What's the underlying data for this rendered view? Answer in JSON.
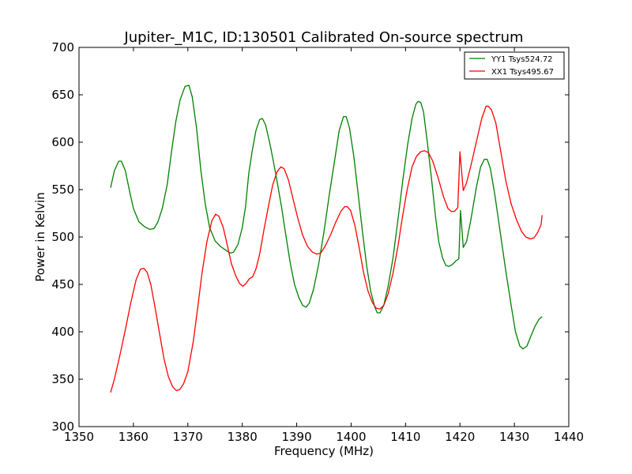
{
  "chart_data": {
    "type": "line",
    "title": "Jupiter-_M1C, ID:130501 Calibrated On-source spectrum",
    "xlabel": "Frequency (MHz)",
    "ylabel": "Power in Kelvin",
    "xlim": [
      1350,
      1440
    ],
    "ylim": [
      300,
      700
    ],
    "xticks": [
      1350,
      1360,
      1370,
      1380,
      1390,
      1400,
      1410,
      1420,
      1430,
      1440
    ],
    "yticks": [
      300,
      350,
      400,
      450,
      500,
      550,
      600,
      650,
      700
    ],
    "grid": false,
    "legend_position": "top-right",
    "series": [
      {
        "name": "YY1 Tsys524.72",
        "color": "#008000",
        "points": [
          [
            1355.8,
            552
          ],
          [
            1356.5,
            570
          ],
          [
            1357.3,
            580
          ],
          [
            1357.8,
            580
          ],
          [
            1358.5,
            570
          ],
          [
            1359.3,
            548
          ],
          [
            1360,
            530
          ],
          [
            1361,
            516
          ],
          [
            1362,
            511
          ],
          [
            1363,
            508
          ],
          [
            1363.8,
            509
          ],
          [
            1364.5,
            516
          ],
          [
            1365.3,
            530
          ],
          [
            1366.2,
            555
          ],
          [
            1367,
            590
          ],
          [
            1367.8,
            622
          ],
          [
            1368.6,
            645
          ],
          [
            1369.5,
            659
          ],
          [
            1370.2,
            660
          ],
          [
            1370.8,
            648
          ],
          [
            1371.6,
            615
          ],
          [
            1372.4,
            570
          ],
          [
            1373.2,
            535
          ],
          [
            1374,
            510
          ],
          [
            1375,
            496
          ],
          [
            1376,
            490
          ],
          [
            1377,
            486
          ],
          [
            1377.8,
            483
          ],
          [
            1378.4,
            484
          ],
          [
            1379.2,
            492
          ],
          [
            1380,
            510
          ],
          [
            1380.6,
            532
          ],
          [
            1381.2,
            567
          ],
          [
            1381.8,
            590
          ],
          [
            1382.5,
            612
          ],
          [
            1383.2,
            624
          ],
          [
            1383.7,
            625
          ],
          [
            1384.3,
            618
          ],
          [
            1385.2,
            595
          ],
          [
            1386.2,
            565
          ],
          [
            1387.2,
            532
          ],
          [
            1388,
            502
          ],
          [
            1388.8,
            473
          ],
          [
            1389.6,
            450
          ],
          [
            1390.4,
            436
          ],
          [
            1391.1,
            428
          ],
          [
            1391.7,
            426
          ],
          [
            1392.3,
            430
          ],
          [
            1393.1,
            445
          ],
          [
            1394,
            470
          ],
          [
            1395,
            505
          ],
          [
            1396,
            545
          ],
          [
            1397,
            582
          ],
          [
            1397.8,
            612
          ],
          [
            1398.6,
            627
          ],
          [
            1399.1,
            627
          ],
          [
            1399.7,
            615
          ],
          [
            1400.5,
            585
          ],
          [
            1401.3,
            545
          ],
          [
            1402.1,
            505
          ],
          [
            1402.9,
            468
          ],
          [
            1403.6,
            443
          ],
          [
            1404.3,
            427
          ],
          [
            1404.8,
            420
          ],
          [
            1405.3,
            420
          ],
          [
            1406,
            428
          ],
          [
            1406.8,
            448
          ],
          [
            1407.7,
            478
          ],
          [
            1408.6,
            518
          ],
          [
            1409.5,
            560
          ],
          [
            1410.4,
            598
          ],
          [
            1411.2,
            625
          ],
          [
            1411.9,
            640
          ],
          [
            1412.3,
            643
          ],
          [
            1412.8,
            642
          ],
          [
            1413.3,
            632
          ],
          [
            1414,
            600
          ],
          [
            1414.8,
            560
          ],
          [
            1415.5,
            522
          ],
          [
            1416.1,
            495
          ],
          [
            1416.8,
            478
          ],
          [
            1417.4,
            470
          ],
          [
            1418,
            469
          ],
          [
            1418.6,
            471
          ],
          [
            1419.3,
            475
          ],
          [
            1419.8,
            477
          ],
          [
            1420.1,
            528
          ],
          [
            1420.6,
            489
          ],
          [
            1421.2,
            495
          ],
          [
            1422,
            518
          ],
          [
            1423,
            552
          ],
          [
            1423.8,
            574
          ],
          [
            1424.5,
            582
          ],
          [
            1425,
            582
          ],
          [
            1425.6,
            572
          ],
          [
            1426.4,
            545
          ],
          [
            1427.4,
            505
          ],
          [
            1428.4,
            465
          ],
          [
            1429.4,
            428
          ],
          [
            1430.2,
            400
          ],
          [
            1431,
            385
          ],
          [
            1431.6,
            382
          ],
          [
            1432.3,
            385
          ],
          [
            1433,
            395
          ],
          [
            1433.8,
            406
          ],
          [
            1434.5,
            413
          ],
          [
            1435.1,
            416
          ]
        ]
      },
      {
        "name": "XX1 Tsys495.67",
        "color": "#ff0000",
        "points": [
          [
            1355.8,
            336
          ],
          [
            1356.5,
            350
          ],
          [
            1357.5,
            375
          ],
          [
            1358.5,
            402
          ],
          [
            1359.5,
            430
          ],
          [
            1360.5,
            455
          ],
          [
            1361.3,
            466
          ],
          [
            1361.9,
            467
          ],
          [
            1362.5,
            463
          ],
          [
            1363.2,
            450
          ],
          [
            1364,
            425
          ],
          [
            1364.8,
            398
          ],
          [
            1365.6,
            372
          ],
          [
            1366.4,
            353
          ],
          [
            1367.2,
            342
          ],
          [
            1367.9,
            338
          ],
          [
            1368.5,
            339
          ],
          [
            1369.2,
            345
          ],
          [
            1370,
            358
          ],
          [
            1371,
            390
          ],
          [
            1371.8,
            425
          ],
          [
            1372.6,
            462
          ],
          [
            1373.5,
            495
          ],
          [
            1374.4,
            517
          ],
          [
            1375.1,
            524
          ],
          [
            1375.7,
            522
          ],
          [
            1376.5,
            510
          ],
          [
            1377.3,
            490
          ],
          [
            1378,
            472
          ],
          [
            1378.8,
            459
          ],
          [
            1379.5,
            451
          ],
          [
            1380.1,
            448
          ],
          [
            1380.7,
            451
          ],
          [
            1381.3,
            456
          ],
          [
            1381.9,
            458
          ],
          [
            1382.5,
            466
          ],
          [
            1383.2,
            482
          ],
          [
            1384,
            508
          ],
          [
            1384.8,
            532
          ],
          [
            1385.6,
            555
          ],
          [
            1386.4,
            569
          ],
          [
            1387.1,
            574
          ],
          [
            1387.7,
            572
          ],
          [
            1388.5,
            560
          ],
          [
            1389.3,
            541
          ],
          [
            1390.2,
            520
          ],
          [
            1391.1,
            502
          ],
          [
            1392,
            490
          ],
          [
            1392.9,
            484
          ],
          [
            1393.7,
            482
          ],
          [
            1394.4,
            483
          ],
          [
            1395.2,
            490
          ],
          [
            1396.2,
            502
          ],
          [
            1397.2,
            516
          ],
          [
            1398.1,
            527
          ],
          [
            1398.8,
            532
          ],
          [
            1399.3,
            532
          ],
          [
            1399.9,
            528
          ],
          [
            1400.7,
            512
          ],
          [
            1401.5,
            488
          ],
          [
            1402.3,
            462
          ],
          [
            1403.1,
            443
          ],
          [
            1403.9,
            431
          ],
          [
            1404.6,
            425
          ],
          [
            1405.3,
            424
          ],
          [
            1406,
            428
          ],
          [
            1406.8,
            440
          ],
          [
            1407.7,
            462
          ],
          [
            1408.6,
            490
          ],
          [
            1409.4,
            520
          ],
          [
            1410.3,
            550
          ],
          [
            1411.2,
            574
          ],
          [
            1412,
            585
          ],
          [
            1412.8,
            590
          ],
          [
            1413.5,
            591
          ],
          [
            1414.2,
            589
          ],
          [
            1415,
            580
          ],
          [
            1416,
            562
          ],
          [
            1417,
            542
          ],
          [
            1417.8,
            530
          ],
          [
            1418.4,
            527
          ],
          [
            1419,
            527
          ],
          [
            1419.6,
            531
          ],
          [
            1420,
            590
          ],
          [
            1420.6,
            549
          ],
          [
            1421.2,
            557
          ],
          [
            1422,
            575
          ],
          [
            1423,
            600
          ],
          [
            1424,
            625
          ],
          [
            1424.8,
            638
          ],
          [
            1425.2,
            638
          ],
          [
            1425.8,
            634
          ],
          [
            1426.6,
            620
          ],
          [
            1427.5,
            590
          ],
          [
            1428.4,
            560
          ],
          [
            1429.4,
            535
          ],
          [
            1430.4,
            518
          ],
          [
            1431.3,
            506
          ],
          [
            1432.1,
            500
          ],
          [
            1432.9,
            498
          ],
          [
            1433.6,
            499
          ],
          [
            1434.3,
            505
          ],
          [
            1434.9,
            513
          ],
          [
            1435.1,
            523
          ]
        ]
      }
    ]
  }
}
